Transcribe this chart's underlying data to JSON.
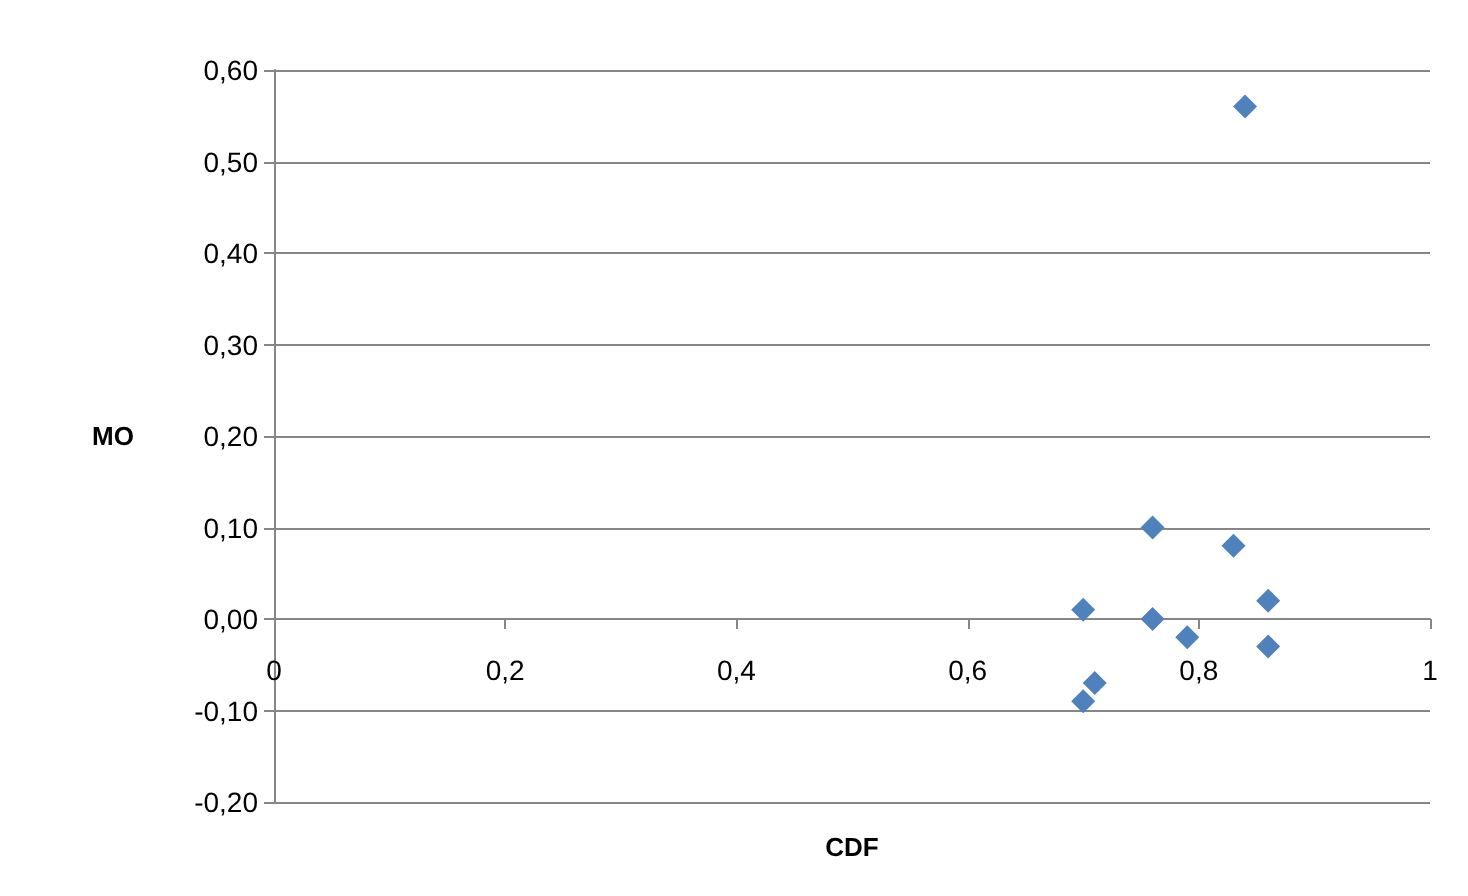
{
  "chart_data": {
    "type": "scatter",
    "xlabel": "CDF",
    "ylabel": "MO",
    "x": [
      0.84,
      0.76,
      0.83,
      0.7,
      0.76,
      0.86,
      0.79,
      0.86,
      0.71,
      0.7
    ],
    "series": [
      {
        "color": "#4f81bd",
        "values": [
          0.56,
          0.1,
          0.08,
          0.01,
          0.0,
          0.02,
          -0.02,
          -0.03,
          -0.07,
          -0.09
        ]
      }
    ],
    "xlim": [
      0,
      1
    ],
    "xticks": [
      0,
      {
        "value": 0.2,
        "label": "0,2"
      },
      {
        "value": 0.4,
        "label": "0,4"
      },
      {
        "value": 0.6,
        "label": "0,6"
      },
      {
        "value": 0.8,
        "label": "0,8"
      },
      1
    ],
    "ylim": [
      -0.2,
      0.6
    ],
    "yticks": [
      {
        "value": -0.2,
        "label": "-0,20"
      },
      {
        "value": -0.1,
        "label": "-0,10"
      },
      {
        "value": 0,
        "label": "0,00"
      },
      {
        "value": 0.1,
        "label": "0,10"
      },
      {
        "value": 0.2,
        "label": "0,20"
      },
      {
        "value": 0.3,
        "label": "0,30"
      },
      {
        "value": 0.4,
        "label": "0,40"
      },
      {
        "value": 0.5,
        "label": "0,50"
      },
      {
        "value": 0.6,
        "label": "0,60"
      }
    ],
    "grid": "y",
    "marker": "diamond"
  }
}
